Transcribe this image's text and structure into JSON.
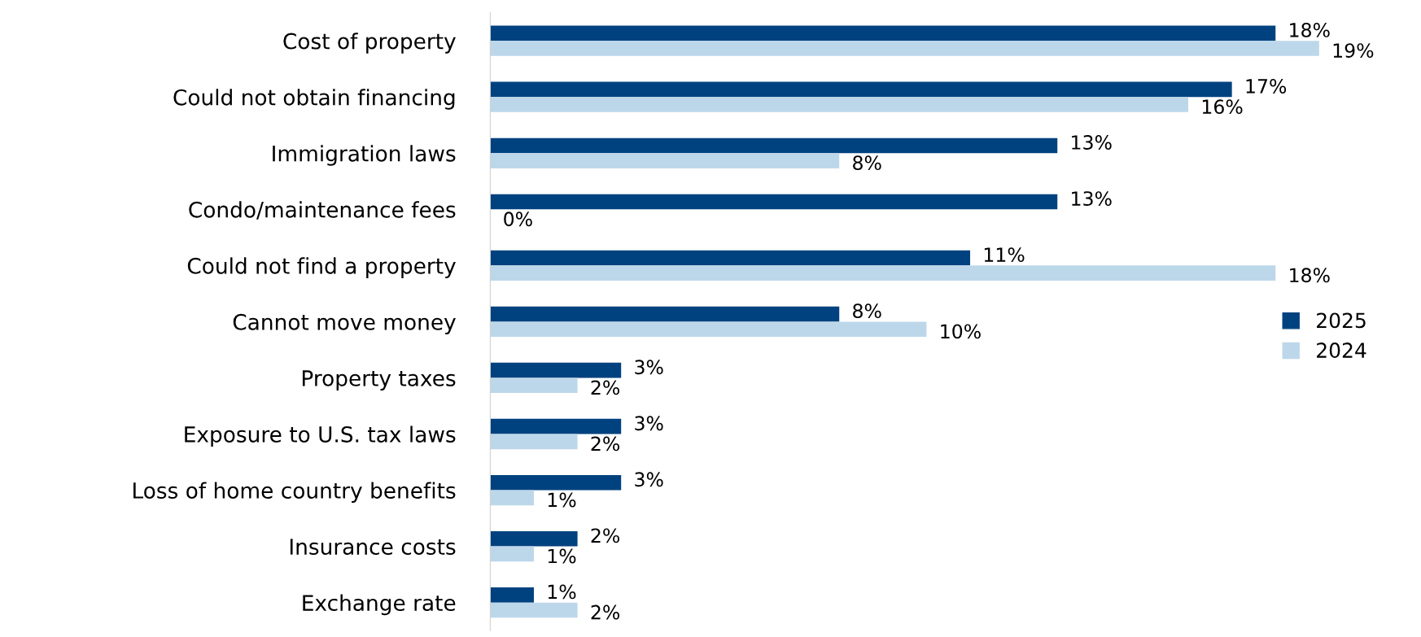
{
  "chart_data": {
    "type": "bar",
    "orientation": "horizontal",
    "categories": [
      "Cost of property",
      "Could not obtain financing",
      "Immigration laws",
      "Condo/maintenance fees",
      "Could not find a property",
      "Cannot move money",
      "Property taxes",
      "Exposure to U.S. tax laws",
      "Loss of home country benefits",
      "Insurance costs",
      "Exchange rate"
    ],
    "series": [
      {
        "name": "2025",
        "color": "#00427f",
        "values": [
          18,
          17,
          13,
          13,
          11,
          8,
          3,
          3,
          3,
          2,
          1
        ],
        "value_labels": [
          "18%",
          "17%",
          "13%",
          "13%",
          "11%",
          "8%",
          "3%",
          "3%",
          "3%",
          "2%",
          "1%"
        ]
      },
      {
        "name": "2024",
        "color": "#bdd7ea",
        "values": [
          19,
          16,
          8,
          0,
          18,
          10,
          2,
          2,
          1,
          1,
          2
        ],
        "value_labels": [
          "19%",
          "16%",
          "8%",
          "0%",
          "18%",
          "10%",
          "2%",
          "2%",
          "1%",
          "1%",
          "2%"
        ]
      }
    ],
    "legend": "center right",
    "grid": false,
    "tick_labels": "y"
  }
}
